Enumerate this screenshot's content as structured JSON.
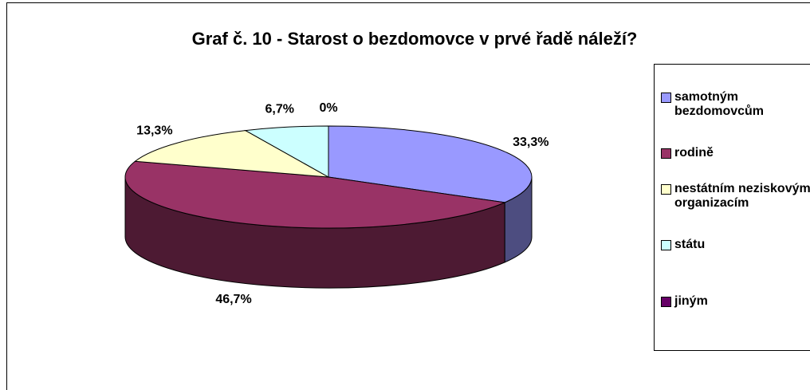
{
  "chart_data": {
    "type": "pie",
    "title": "Graf č. 10 - Starost o bezdomovce v prvé řadě náleží?",
    "categories": [
      "samotným bezdomovcům",
      "rodině",
      "nestátním neziskovým organizacím",
      "státu",
      "jiným"
    ],
    "values": [
      33.3,
      46.7,
      13.3,
      6.7,
      0
    ],
    "value_labels": [
      "33,3%",
      "46,7%",
      "13,3%",
      "6,7%",
      "0%"
    ],
    "colors": [
      "#9999ff",
      "#993366",
      "#ffffcc",
      "#ccffff",
      "#660066"
    ],
    "legend": "right"
  }
}
